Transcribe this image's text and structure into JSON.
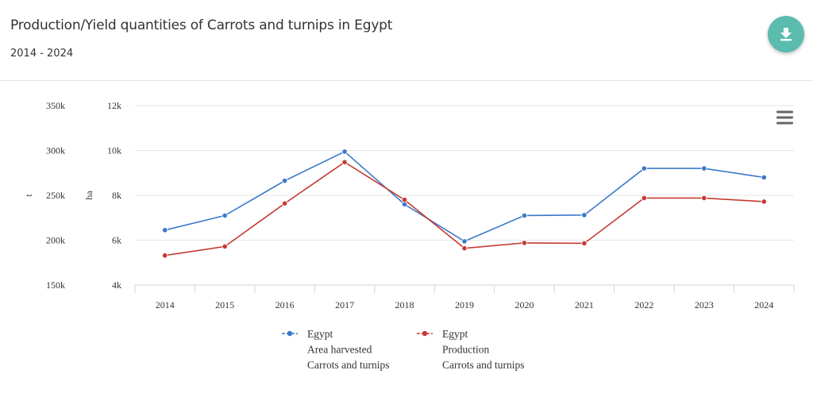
{
  "header": {
    "title": "Production/Yield quantities of Carrots and turnips in Egypt",
    "subtitle": "2014 - 2024"
  },
  "icons": {
    "download": "download-icon",
    "menu": "hamburger-menu-icon"
  },
  "colors": {
    "accent": "#5bbcae",
    "series_area": "#3a78c9",
    "series_production": "#c53a32",
    "grid": "#e6e6e6"
  },
  "chart_data": {
    "type": "line",
    "title": "",
    "x": [
      "2014",
      "2015",
      "2016",
      "2017",
      "2018",
      "2019",
      "2020",
      "2021",
      "2022",
      "2023",
      "2024"
    ],
    "xlabel": "",
    "y_axes": [
      {
        "label": "t",
        "ticks": [
          "150k",
          "200k",
          "250k",
          "300k",
          "350k"
        ],
        "range": [
          150000,
          350000
        ]
      },
      {
        "label": "ha",
        "ticks": [
          "4k",
          "6k",
          "8k",
          "10k",
          "12k"
        ],
        "range": [
          4000,
          12000
        ]
      }
    ],
    "grid": true,
    "legend_position": "bottom",
    "series": [
      {
        "name": "Egypt Area harvested Carrots and turnips",
        "legend_lines": [
          "Egypt",
          "Area harvested",
          "Carrots and turnips"
        ],
        "axis": "ha",
        "values": [
          6450,
          7100,
          8650,
          9950,
          7600,
          5950,
          7100,
          7120,
          9200,
          9200,
          8800
        ]
      },
      {
        "name": "Egypt Production Carrots and turnips",
        "legend_lines": [
          "Egypt",
          "Production",
          "Carrots and turnips"
        ],
        "axis": "t",
        "values": [
          183000,
          193000,
          241000,
          287000,
          245000,
          191000,
          197000,
          196500,
          247000,
          247000,
          243000
        ]
      }
    ]
  }
}
